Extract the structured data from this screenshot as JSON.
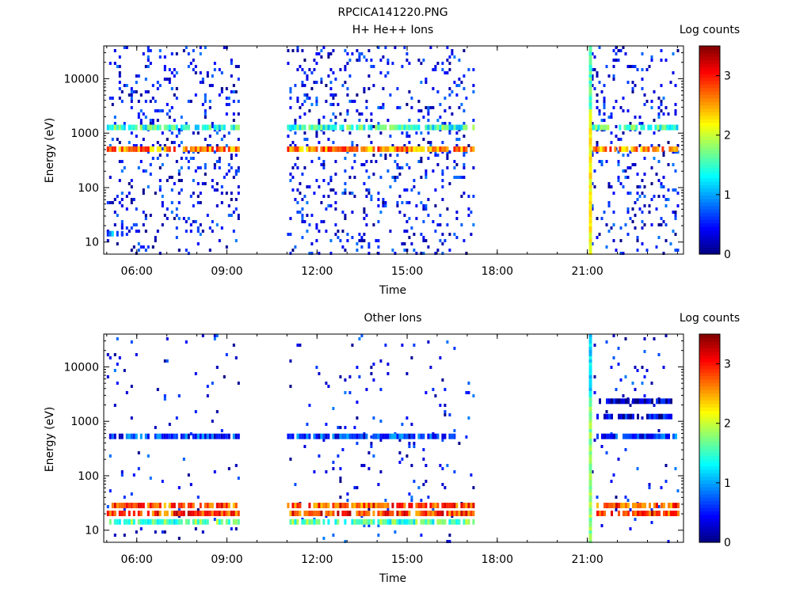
{
  "figure_title": "RPCICA141220.PNG",
  "chart_data": [
    {
      "type": "heatmap",
      "title": "H+ He++ Ions",
      "xlabel": "Time",
      "ylabel": "Energy (eV)",
      "x_ticks": [
        "06:00",
        "09:00",
        "12:00",
        "15:00",
        "18:00",
        "21:00"
      ],
      "x_tick_hours": [
        6,
        9,
        12,
        15,
        18,
        21
      ],
      "xlim_hours": [
        4.9,
        24.2
      ],
      "y_scale": "log",
      "y_ticks": [
        "10",
        "100",
        "1000",
        "10000"
      ],
      "y_tick_values": [
        10,
        100,
        1000,
        10000
      ],
      "ylim": [
        6,
        40000
      ],
      "colorbar": {
        "label": "Log counts",
        "ticks": [
          "0",
          "1",
          "2",
          "3"
        ],
        "range": [
          0,
          3.5
        ]
      },
      "data_segments_hours": [
        [
          5.0,
          9.4
        ],
        [
          11.0,
          17.2
        ],
        [
          21.05,
          24.0
        ]
      ],
      "bands": [
        {
          "energy_eV": 1250,
          "log_counts": 1.5,
          "segments": [
            [
              5.0,
              9.4
            ],
            [
              11.0,
              17.2
            ],
            [
              21.1,
              24.0
            ]
          ]
        },
        {
          "energy_eV": 500,
          "log_counts": 2.6,
          "segments": [
            [
              5.0,
              9.4
            ],
            [
              11.0,
              17.2
            ],
            [
              21.1,
              24.0
            ]
          ]
        },
        {
          "energy_eV": 14,
          "log_counts": 1.0,
          "segments": [
            [
              5.0,
              5.6
            ]
          ]
        }
      ],
      "spike": {
        "hour": 21.05,
        "energy_range_eV": [
          6,
          40000
        ],
        "log_counts": 2.2
      }
    },
    {
      "type": "heatmap",
      "title": "Other Ions",
      "xlabel": "Time",
      "ylabel": "Energy (eV)",
      "x_ticks": [
        "06:00",
        "09:00",
        "12:00",
        "15:00",
        "18:00",
        "21:00"
      ],
      "x_tick_hours": [
        6,
        9,
        12,
        15,
        18,
        21
      ],
      "xlim_hours": [
        4.9,
        24.2
      ],
      "y_scale": "log",
      "y_ticks": [
        "10",
        "100",
        "1000",
        "10000"
      ],
      "y_tick_values": [
        10,
        100,
        1000,
        10000
      ],
      "ylim": [
        6,
        40000
      ],
      "colorbar": {
        "label": "Log counts",
        "ticks": [
          "0",
          "1",
          "2",
          "3"
        ],
        "range": [
          0,
          3.5
        ]
      },
      "data_segments_hours": [
        [
          5.0,
          9.4
        ],
        [
          11.0,
          17.2
        ],
        [
          21.05,
          24.0
        ]
      ],
      "bands": [
        {
          "energy_eV": 28,
          "log_counts": 2.8,
          "segments": [
            [
              5.0,
              9.4
            ],
            [
              11.0,
              17.2
            ],
            [
              21.3,
              24.0
            ]
          ]
        },
        {
          "energy_eV": 20,
          "log_counts": 2.9,
          "segments": [
            [
              5.0,
              9.4
            ],
            [
              11.0,
              17.2
            ],
            [
              21.3,
              24.0
            ]
          ]
        },
        {
          "energy_eV": 14,
          "log_counts": 1.6,
          "segments": [
            [
              5.0,
              9.4
            ],
            [
              11.0,
              17.2
            ]
          ]
        },
        {
          "energy_eV": 520,
          "log_counts": 0.6,
          "segments": [
            [
              5.0,
              9.4
            ],
            [
              11.0,
              16.6
            ],
            [
              21.3,
              24.0
            ]
          ]
        },
        {
          "energy_eV": 1200,
          "log_counts": 0.3,
          "segments": [
            [
              21.3,
              23.8
            ]
          ]
        },
        {
          "energy_eV": 2300,
          "log_counts": 0.2,
          "segments": [
            [
              21.3,
              23.8
            ]
          ]
        }
      ],
      "spike": {
        "hour": 21.05,
        "energy_range_eV": [
          6,
          40000
        ],
        "log_counts": 1.8
      }
    }
  ]
}
